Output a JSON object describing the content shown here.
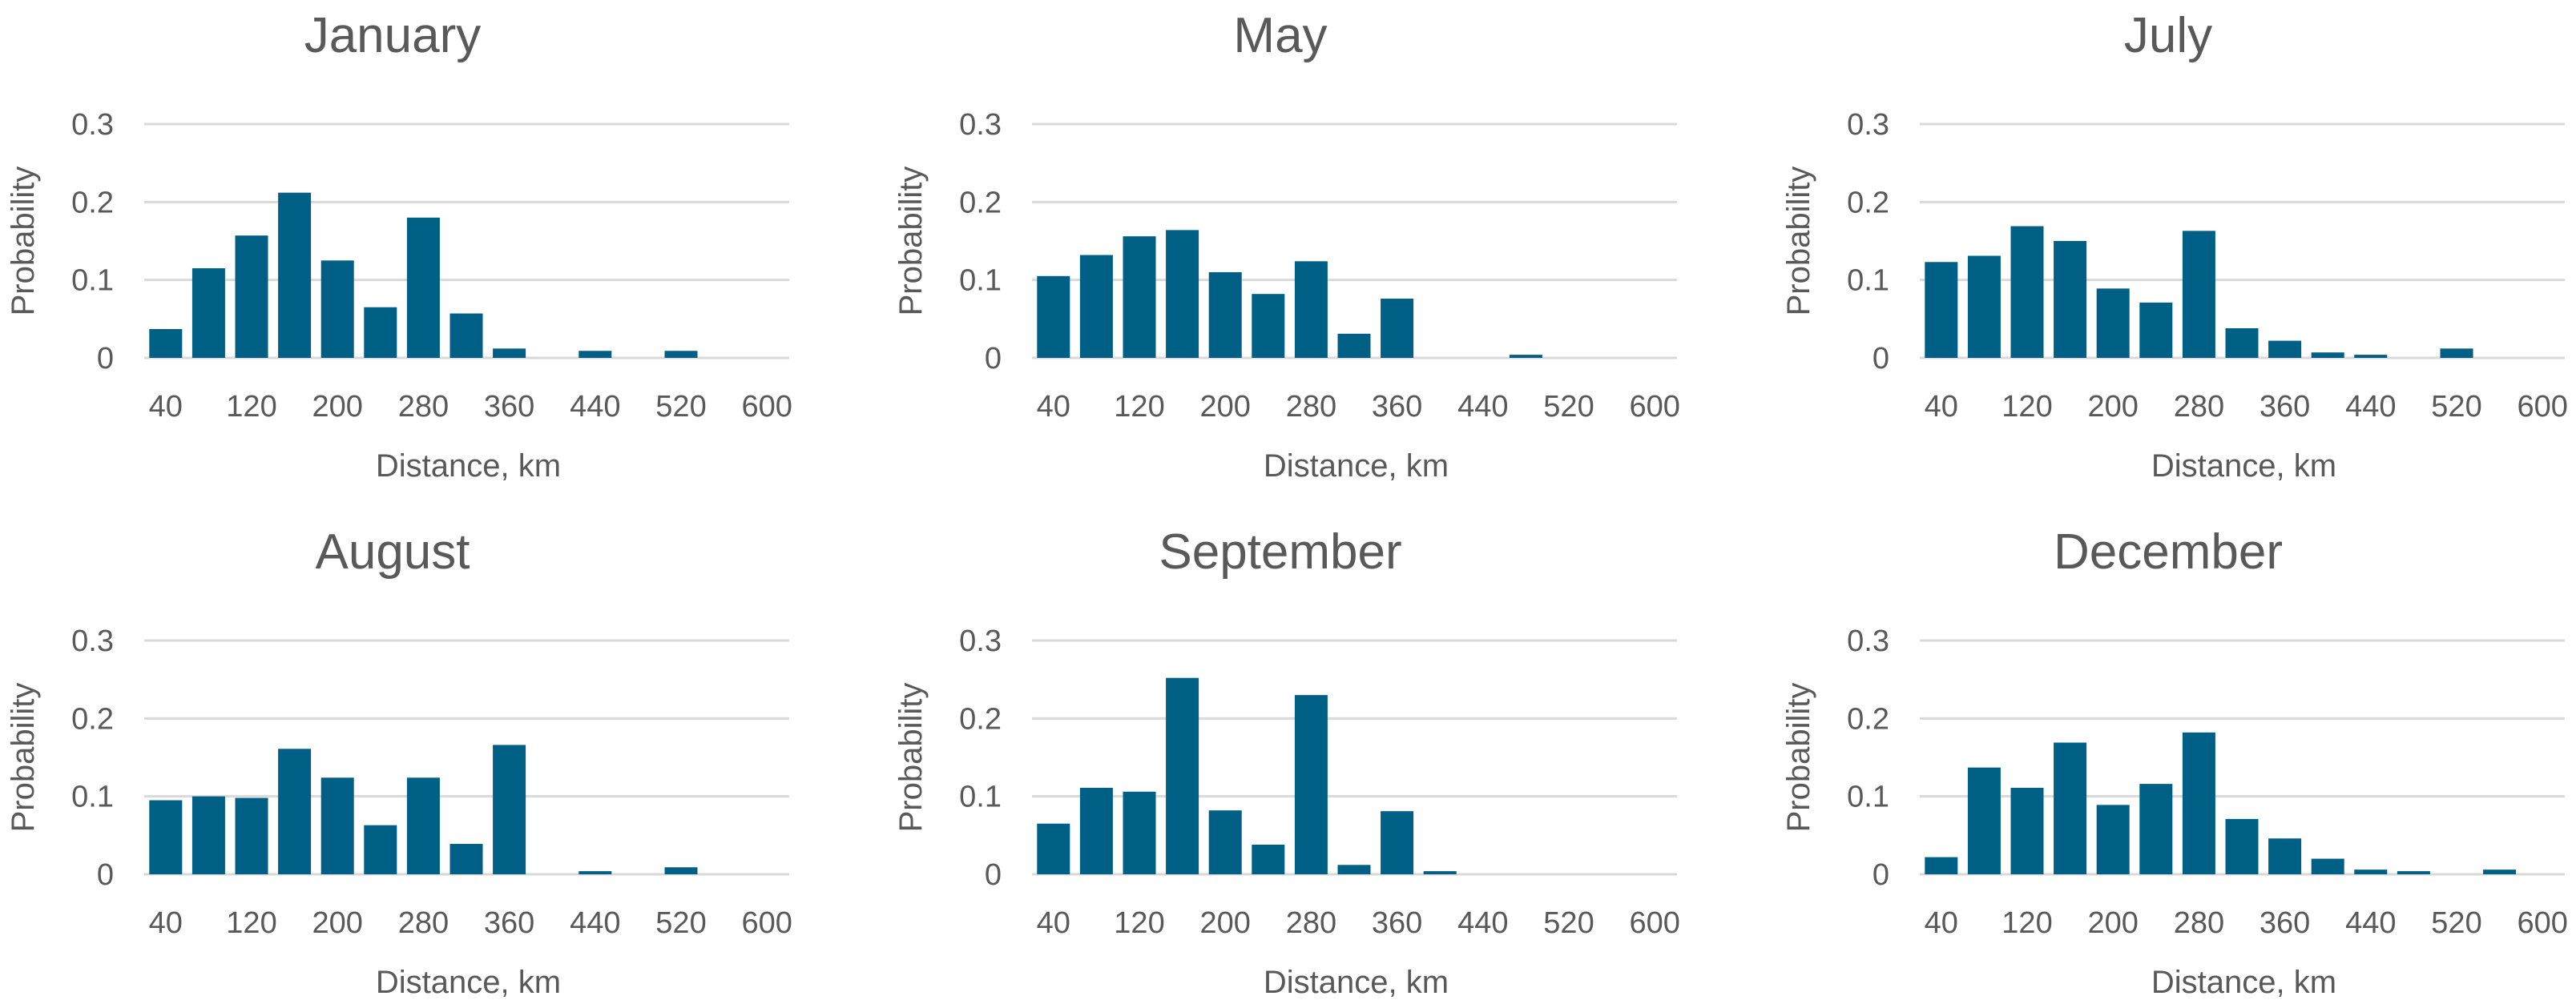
{
  "colors": {
    "bar": "#005f84",
    "grid": "#d9d9d9",
    "text": "#595959",
    "background": "#ffffff"
  },
  "chart_data": [
    {
      "type": "bar",
      "title": "January",
      "xlabel": "Distance, km",
      "ylabel": "Probability",
      "ylim": [
        0,
        0.3
      ],
      "yticks": [
        "0",
        "0.1",
        "0.2",
        "0.3"
      ],
      "xticks": [
        "40",
        "120",
        "200",
        "280",
        "360",
        "440",
        "520",
        "600"
      ],
      "categories": [
        "40",
        "80",
        "120",
        "160",
        "200",
        "240",
        "280",
        "320",
        "360",
        "400",
        "440",
        "480",
        "520",
        "560",
        "600"
      ],
      "values": [
        0.037,
        0.115,
        0.157,
        0.212,
        0.125,
        0.065,
        0.18,
        0.057,
        0.012,
        0,
        0.009,
        0,
        0.009,
        0,
        0
      ],
      "grid": true
    },
    {
      "type": "bar",
      "title": "May",
      "xlabel": "Distance, km",
      "ylabel": "Probability",
      "ylim": [
        0,
        0.3
      ],
      "yticks": [
        "0",
        "0.1",
        "0.2",
        "0.3"
      ],
      "xticks": [
        "40",
        "120",
        "200",
        "280",
        "360",
        "440",
        "520",
        "600"
      ],
      "categories": [
        "40",
        "80",
        "120",
        "160",
        "200",
        "240",
        "280",
        "320",
        "360",
        "400",
        "440",
        "480",
        "520",
        "560",
        "600"
      ],
      "values": [
        0.105,
        0.132,
        0.156,
        0.164,
        0.11,
        0.082,
        0.124,
        0.031,
        0.076,
        0,
        0,
        0.004,
        0,
        0,
        0
      ],
      "grid": true
    },
    {
      "type": "bar",
      "title": "July",
      "xlabel": "Distance, km",
      "ylabel": "Probability",
      "ylim": [
        0,
        0.3
      ],
      "yticks": [
        "0",
        "0.1",
        "0.2",
        "0.3"
      ],
      "xticks": [
        "40",
        "120",
        "200",
        "280",
        "360",
        "440",
        "520",
        "600"
      ],
      "categories": [
        "40",
        "80",
        "120",
        "160",
        "200",
        "240",
        "280",
        "320",
        "360",
        "400",
        "440",
        "480",
        "520",
        "560",
        "600"
      ],
      "values": [
        0.123,
        0.131,
        0.169,
        0.15,
        0.089,
        0.071,
        0.163,
        0.038,
        0.022,
        0.007,
        0.004,
        0,
        0.012,
        0,
        0
      ],
      "grid": true
    },
    {
      "type": "bar",
      "title": "August",
      "xlabel": "Distance, km",
      "ylabel": "Probability",
      "ylim": [
        0,
        0.3
      ],
      "yticks": [
        "0",
        "0.1",
        "0.2",
        "0.3"
      ],
      "xticks": [
        "40",
        "120",
        "200",
        "280",
        "360",
        "440",
        "520",
        "600"
      ],
      "categories": [
        "40",
        "80",
        "120",
        "160",
        "200",
        "240",
        "280",
        "320",
        "360",
        "400",
        "440",
        "480",
        "520",
        "560",
        "600"
      ],
      "values": [
        0.095,
        0.1,
        0.098,
        0.161,
        0.124,
        0.063,
        0.124,
        0.039,
        0.166,
        0,
        0.004,
        0,
        0.009,
        0,
        0
      ],
      "grid": true
    },
    {
      "type": "bar",
      "title": "September",
      "xlabel": "Distance, km",
      "ylabel": "Probability",
      "ylim": [
        0,
        0.3
      ],
      "yticks": [
        "0",
        "0.1",
        "0.2",
        "0.3"
      ],
      "xticks": [
        "40",
        "120",
        "200",
        "280",
        "360",
        "440",
        "520",
        "600"
      ],
      "categories": [
        "40",
        "80",
        "120",
        "160",
        "200",
        "240",
        "280",
        "320",
        "360",
        "400",
        "440",
        "480",
        "520",
        "560",
        "600"
      ],
      "values": [
        0.065,
        0.111,
        0.106,
        0.252,
        0.082,
        0.038,
        0.23,
        0.012,
        0.081,
        0.004,
        0,
        0,
        0,
        0,
        0
      ],
      "grid": true
    },
    {
      "type": "bar",
      "title": "December",
      "xlabel": "Distance, km",
      "ylabel": "Probability",
      "ylim": [
        0,
        0.3
      ],
      "yticks": [
        "0",
        "0.1",
        "0.2",
        "0.3"
      ],
      "xticks": [
        "40",
        "120",
        "200",
        "280",
        "360",
        "440",
        "520",
        "600"
      ],
      "categories": [
        "40",
        "80",
        "120",
        "160",
        "200",
        "240",
        "280",
        "320",
        "360",
        "400",
        "440",
        "480",
        "520",
        "560",
        "600"
      ],
      "values": [
        0.022,
        0.137,
        0.111,
        0.169,
        0.089,
        0.116,
        0.182,
        0.071,
        0.046,
        0.02,
        0.006,
        0.004,
        0,
        0.006,
        0
      ],
      "grid": true
    }
  ]
}
